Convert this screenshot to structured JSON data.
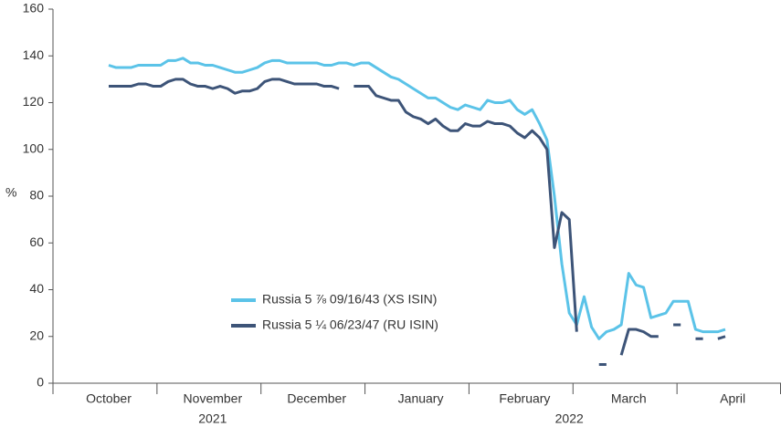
{
  "chart_data": {
    "type": "line",
    "ylabel": "%",
    "ylim": [
      0,
      160
    ],
    "yticks": [
      0,
      20,
      40,
      60,
      80,
      100,
      120,
      140,
      160
    ],
    "grid": false,
    "legend": "lower left",
    "categories": [
      null,
      null,
      null,
      null,
      null,
      null,
      null,
      "October",
      null,
      null,
      null,
      null,
      null,
      null,
      null,
      null,
      null,
      null,
      null,
      null,
      null,
      "November",
      null,
      null,
      null,
      null,
      null,
      null,
      null,
      null,
      null,
      null,
      null,
      null,
      null,
      "December",
      null,
      null,
      null,
      null,
      null,
      null,
      null,
      null,
      null,
      null,
      null,
      null,
      null,
      "January",
      null,
      null,
      null,
      null,
      null,
      null,
      null,
      null,
      null,
      null,
      null,
      null,
      null,
      "February",
      null,
      null,
      null,
      null,
      null,
      null,
      null,
      null,
      null,
      null,
      null,
      null,
      null,
      "March",
      null,
      null,
      null,
      null,
      null,
      null,
      null,
      null,
      null,
      null,
      null,
      null,
      null,
      "April",
      null,
      null,
      null,
      null,
      null,
      null
    ],
    "year_categories": [
      null,
      null,
      null,
      null,
      null,
      null,
      null,
      null,
      null,
      null,
      null,
      null,
      null,
      null,
      null,
      null,
      null,
      null,
      null,
      null,
      null,
      "2021",
      null,
      null,
      null,
      null,
      null,
      null,
      null,
      null,
      null,
      null,
      null,
      null,
      null,
      null,
      null,
      null,
      null,
      null,
      null,
      null,
      null,
      null,
      null,
      null,
      null,
      null,
      null,
      null,
      null,
      null,
      null,
      null,
      null,
      null,
      null,
      null,
      null,
      null,
      null,
      null,
      null,
      null,
      null,
      null,
      null,
      null,
      null,
      "2022",
      null,
      null,
      null,
      null,
      null,
      null,
      null,
      null,
      null,
      null,
      null,
      null,
      null,
      null,
      null,
      null,
      null,
      null,
      null,
      null,
      null,
      null,
      null,
      null,
      null,
      null,
      null,
      null
    ],
    "series": [
      {
        "name": "Russia 5 ⅞  09/16/43 (XS ISIN)",
        "color": "#5bc3e8",
        "values": [
          null,
          null,
          null,
          null,
          null,
          null,
          null,
          136,
          135,
          135,
          135,
          136,
          136,
          136,
          136,
          138,
          138,
          139,
          137,
          137,
          136,
          136,
          135,
          134,
          133,
          133,
          134,
          135,
          137,
          138,
          138,
          137,
          137,
          137,
          137,
          137,
          136,
          136,
          137,
          137,
          136,
          137,
          137,
          135,
          133,
          131,
          130,
          128,
          126,
          124,
          122,
          122,
          120,
          118,
          117,
          119,
          118,
          117,
          121,
          120,
          120,
          121,
          117,
          115,
          117,
          111,
          104,
          80,
          51,
          30,
          25,
          37,
          24,
          19,
          22,
          23,
          25,
          47,
          42,
          41,
          28,
          29,
          30,
          35,
          35,
          35,
          23,
          22,
          22,
          22,
          23,
          null,
          null,
          null,
          null,
          null,
          null,
          null
        ]
      },
      {
        "name": "Russia 5 ¼  06/23/47 (RU ISIN)",
        "color": "#3d5478",
        "values": [
          null,
          null,
          null,
          null,
          null,
          null,
          null,
          127,
          127,
          127,
          127,
          128,
          128,
          127,
          127,
          129,
          130,
          130,
          128,
          127,
          127,
          126,
          127,
          126,
          124,
          125,
          125,
          126,
          129,
          130,
          130,
          129,
          128,
          128,
          128,
          128,
          127,
          127,
          126,
          null,
          127,
          127,
          127,
          123,
          122,
          121,
          121,
          116,
          114,
          113,
          111,
          113,
          110,
          108,
          108,
          111,
          110,
          110,
          112,
          111,
          111,
          110,
          107,
          105,
          108,
          105,
          100,
          58,
          73,
          70,
          22,
          null,
          null,
          8,
          8,
          null,
          12,
          23,
          23,
          22,
          20,
          20,
          null,
          25,
          25,
          null,
          19,
          19,
          null,
          19,
          20,
          null,
          null,
          null,
          null,
          null,
          null,
          null
        ]
      }
    ]
  }
}
